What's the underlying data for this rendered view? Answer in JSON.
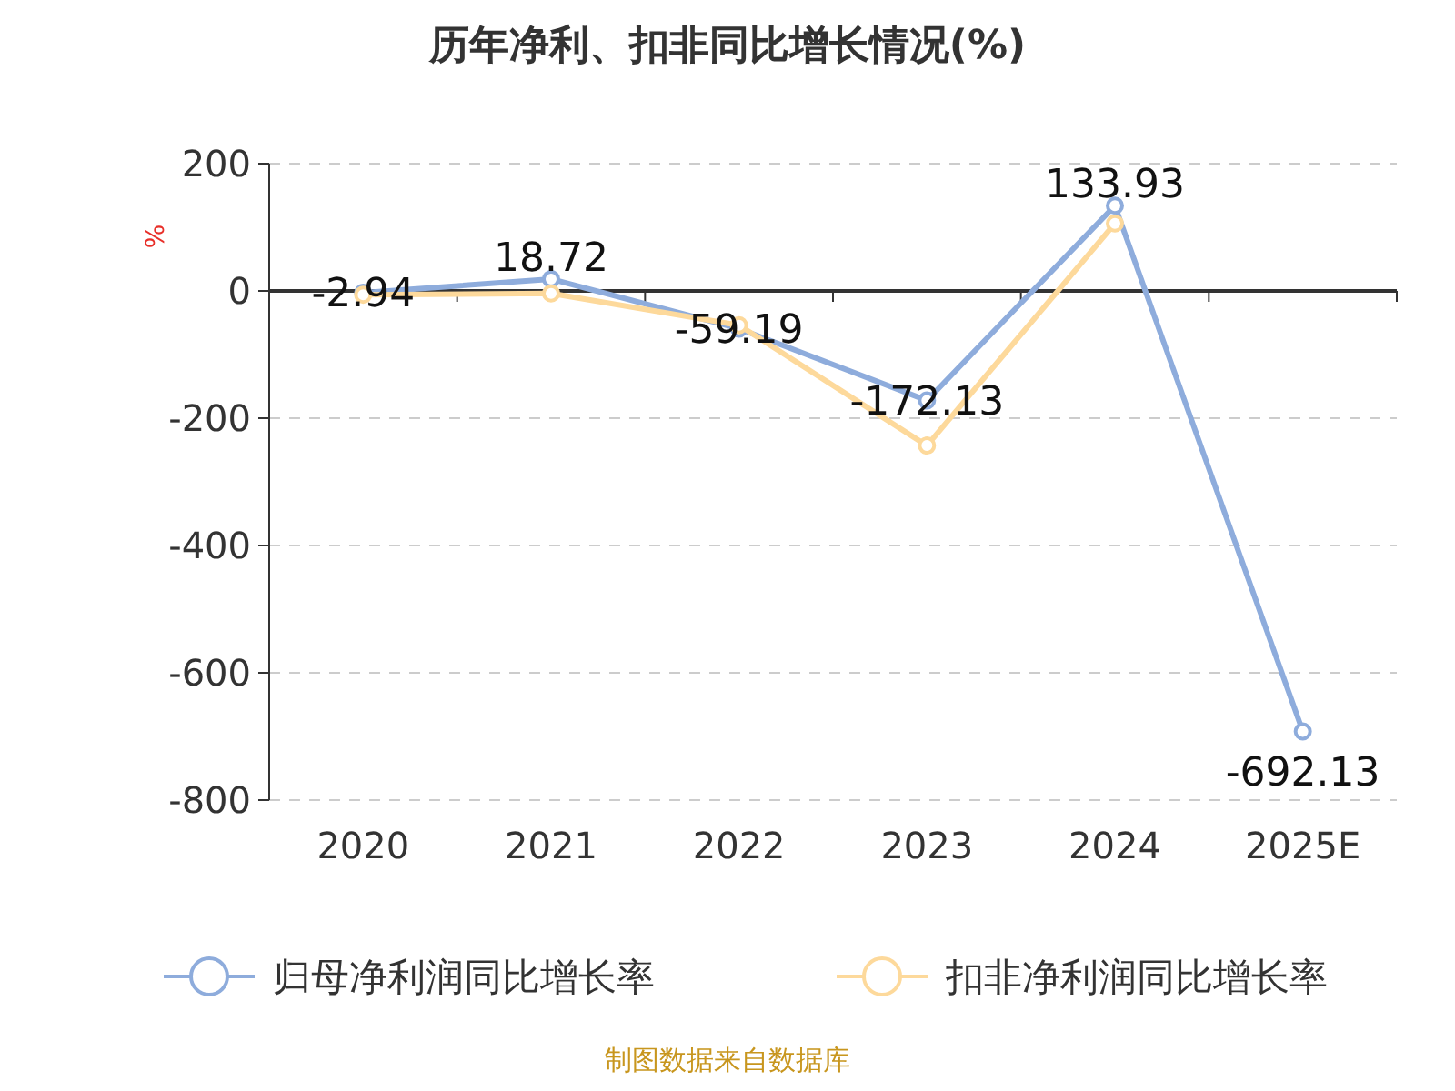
{
  "chart_data": {
    "type": "line",
    "title": "历年净利、扣非同比增长情况(%)",
    "ylabel": "%",
    "categories": [
      "2020",
      "2021",
      "2022",
      "2023",
      "2024",
      "2025E"
    ],
    "series": [
      {
        "name": "归母净利润同比增长率",
        "color": "#8eacdc",
        "values": [
          -2.94,
          18.72,
          -59.19,
          -172.13,
          133.93,
          -692.13
        ],
        "value_labels": [
          "-2.94",
          "18.72",
          "-59.19",
          "-172.13",
          "133.93",
          "-692.13"
        ]
      },
      {
        "name": "扣非净利润同比增长率",
        "color": "#fdd99b",
        "values": [
          -6,
          -4,
          -54,
          -243,
          106,
          null
        ]
      }
    ],
    "ylim": [
      -800,
      200
    ],
    "yticks": [
      -800,
      -600,
      -400,
      -200,
      0,
      200
    ],
    "grid": "y",
    "legend": "bottom",
    "marker": "circle",
    "line_style": "solid",
    "annotations": [
      "制图数据来自数据库"
    ]
  }
}
